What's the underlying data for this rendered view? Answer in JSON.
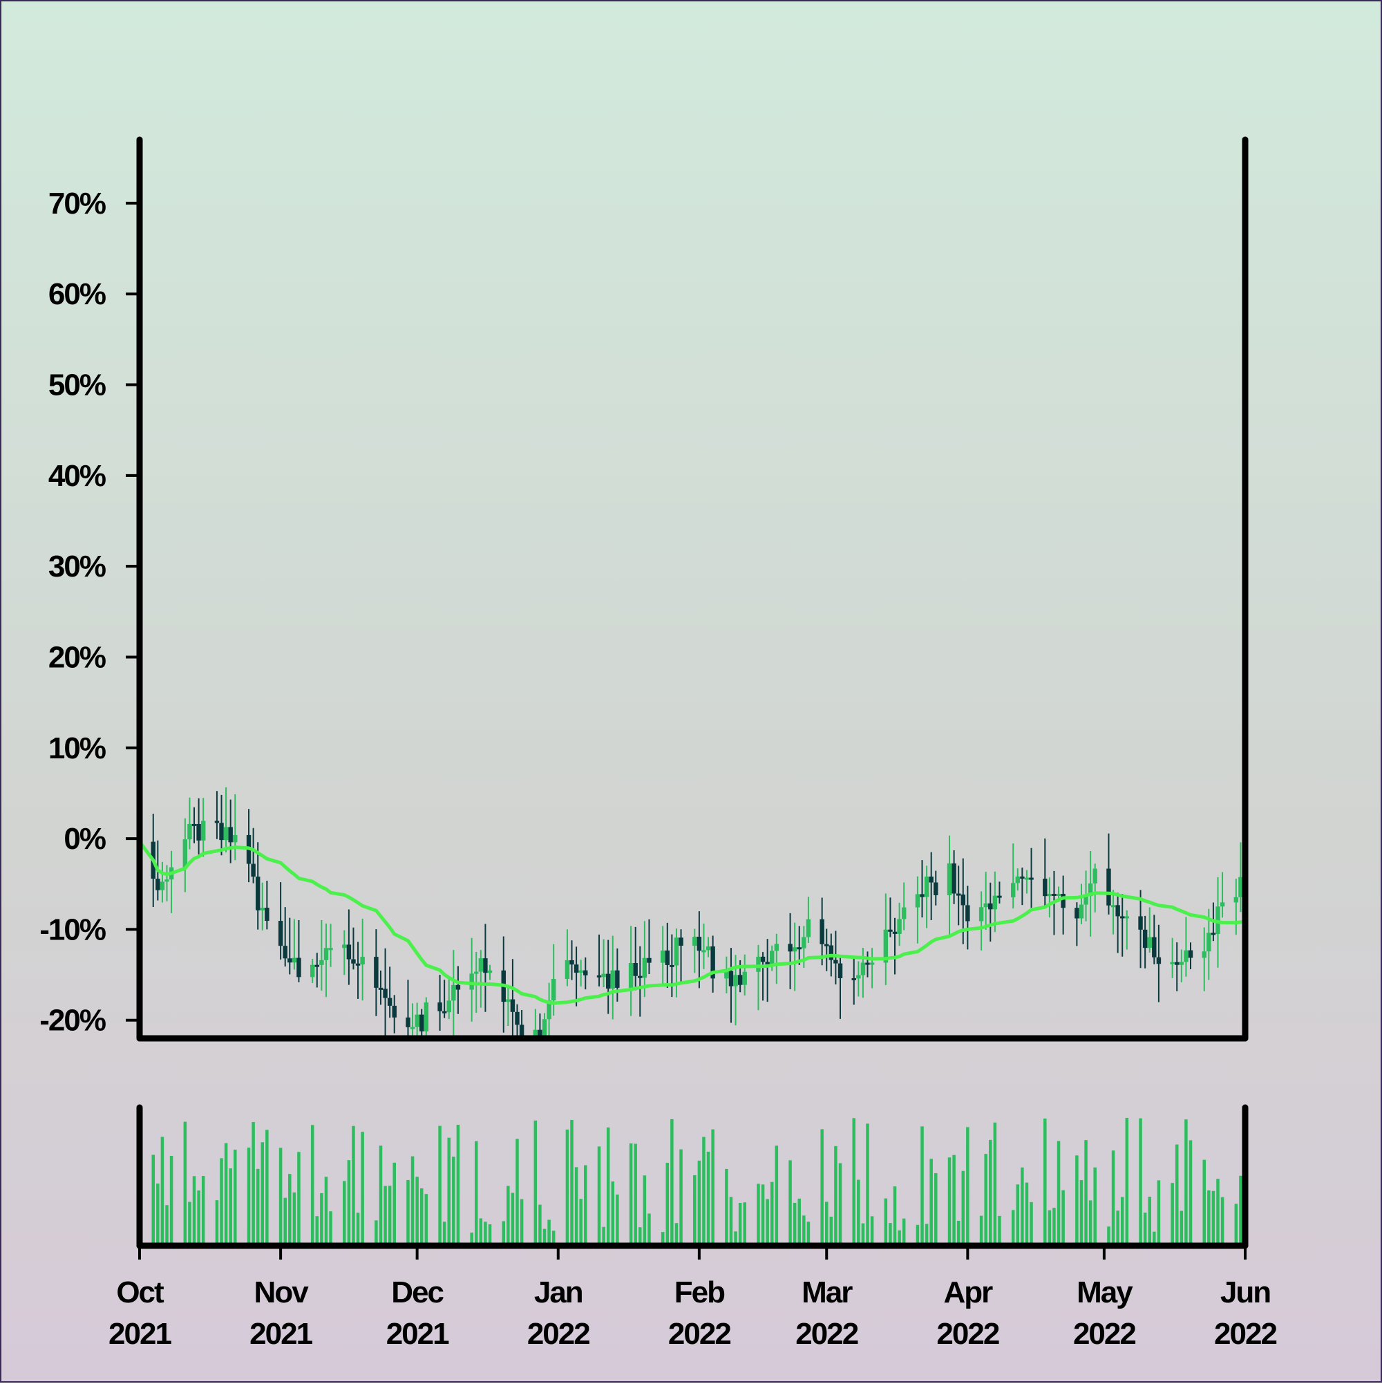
{
  "colors": {
    "up": "#2dbd5f",
    "down": "#0a3a3e",
    "ma": "#4cf04c",
    "volume": "#2dbd5f",
    "axis": "#000000"
  },
  "chart_data": {
    "type": "candlestick",
    "title": "",
    "xlabel": "",
    "ylabel": "",
    "ylim": [
      -22,
      77
    ],
    "grid": false,
    "yticks": [
      -20,
      -10,
      0,
      10,
      20,
      30,
      40,
      50,
      60,
      70
    ],
    "ytick_labels": [
      "-20%",
      "-10%",
      "0%",
      "10%",
      "20%",
      "30%",
      "40%",
      "50%",
      "60%",
      "70%"
    ],
    "x_range": [
      "2021-10-01",
      "2022-06-01"
    ],
    "xticks": [
      "2021-10-01",
      "2021-11-01",
      "2021-12-01",
      "2022-01-01",
      "2022-02-01",
      "2022-03-01",
      "2022-04-01",
      "2022-05-01",
      "2022-06-01"
    ],
    "xtick_labels": [
      [
        "Oct",
        "2021"
      ],
      [
        "Nov",
        "2021"
      ],
      [
        "Dec",
        "2021"
      ],
      [
        "Jan",
        "2022"
      ],
      [
        "Feb",
        "2022"
      ],
      [
        "Mar",
        "2022"
      ],
      [
        "Apr",
        "2022"
      ],
      [
        "May",
        "2022"
      ],
      [
        "Jun",
        "2022"
      ]
    ],
    "price_path": [
      [
        "2021-10-01",
        0
      ],
      [
        "2021-10-04",
        -4
      ],
      [
        "2021-10-07",
        -5
      ],
      [
        "2021-10-09",
        -2
      ],
      [
        "2021-10-12",
        1
      ],
      [
        "2021-10-18",
        1
      ],
      [
        "2021-10-22",
        0
      ],
      [
        "2021-10-25",
        -3
      ],
      [
        "2021-10-29",
        -9
      ],
      [
        "2021-11-02",
        -13
      ],
      [
        "2021-11-05",
        -15
      ],
      [
        "2021-11-10",
        -13
      ],
      [
        "2021-11-14",
        -12
      ],
      [
        "2021-11-20",
        -15
      ],
      [
        "2021-11-26",
        -19
      ],
      [
        "2021-11-30",
        -21
      ],
      [
        "2021-12-03",
        -19
      ],
      [
        "2021-12-06",
        -20
      ],
      [
        "2021-12-09",
        -18
      ],
      [
        "2021-12-12",
        -15
      ],
      [
        "2021-12-16",
        -14
      ],
      [
        "2021-12-20",
        -17
      ],
      [
        "2021-12-24",
        -21
      ],
      [
        "2021-12-28",
        -22
      ],
      [
        "2022-01-01",
        -13
      ],
      [
        "2022-01-05",
        -14
      ],
      [
        "2022-01-09",
        -15
      ],
      [
        "2022-01-14",
        -16
      ],
      [
        "2022-01-18",
        -14
      ],
      [
        "2022-01-22",
        -13
      ],
      [
        "2022-01-26",
        -12
      ],
      [
        "2022-01-29",
        -10
      ],
      [
        "2022-02-02",
        -13
      ],
      [
        "2022-02-06",
        -15
      ],
      [
        "2022-02-10",
        -16
      ],
      [
        "2022-02-14",
        -14
      ],
      [
        "2022-02-18",
        -12
      ],
      [
        "2022-02-22",
        -11
      ],
      [
        "2022-02-26",
        -9
      ],
      [
        "2022-03-01",
        -13
      ],
      [
        "2022-03-04",
        -14
      ],
      [
        "2022-03-08",
        -15
      ],
      [
        "2022-03-12",
        -12
      ],
      [
        "2022-03-16",
        -10
      ],
      [
        "2022-03-20",
        -6
      ],
      [
        "2022-03-24",
        -5
      ],
      [
        "2022-03-28",
        -4
      ],
      [
        "2022-04-01",
        -8
      ],
      [
        "2022-04-05",
        -7
      ],
      [
        "2022-04-09",
        -5
      ],
      [
        "2022-04-13",
        -4
      ],
      [
        "2022-04-17",
        -5
      ],
      [
        "2022-04-21",
        -7
      ],
      [
        "2022-04-25",
        -8
      ],
      [
        "2022-04-29",
        -4
      ],
      [
        "2022-05-02",
        -7
      ],
      [
        "2022-05-06",
        -9
      ],
      [
        "2022-05-11",
        -12
      ],
      [
        "2022-05-15",
        -14
      ],
      [
        "2022-05-19",
        -13
      ],
      [
        "2022-05-23",
        -11
      ],
      [
        "2022-05-26",
        -9
      ],
      [
        "2022-06-01",
        -3
      ]
    ],
    "volume": []
  }
}
